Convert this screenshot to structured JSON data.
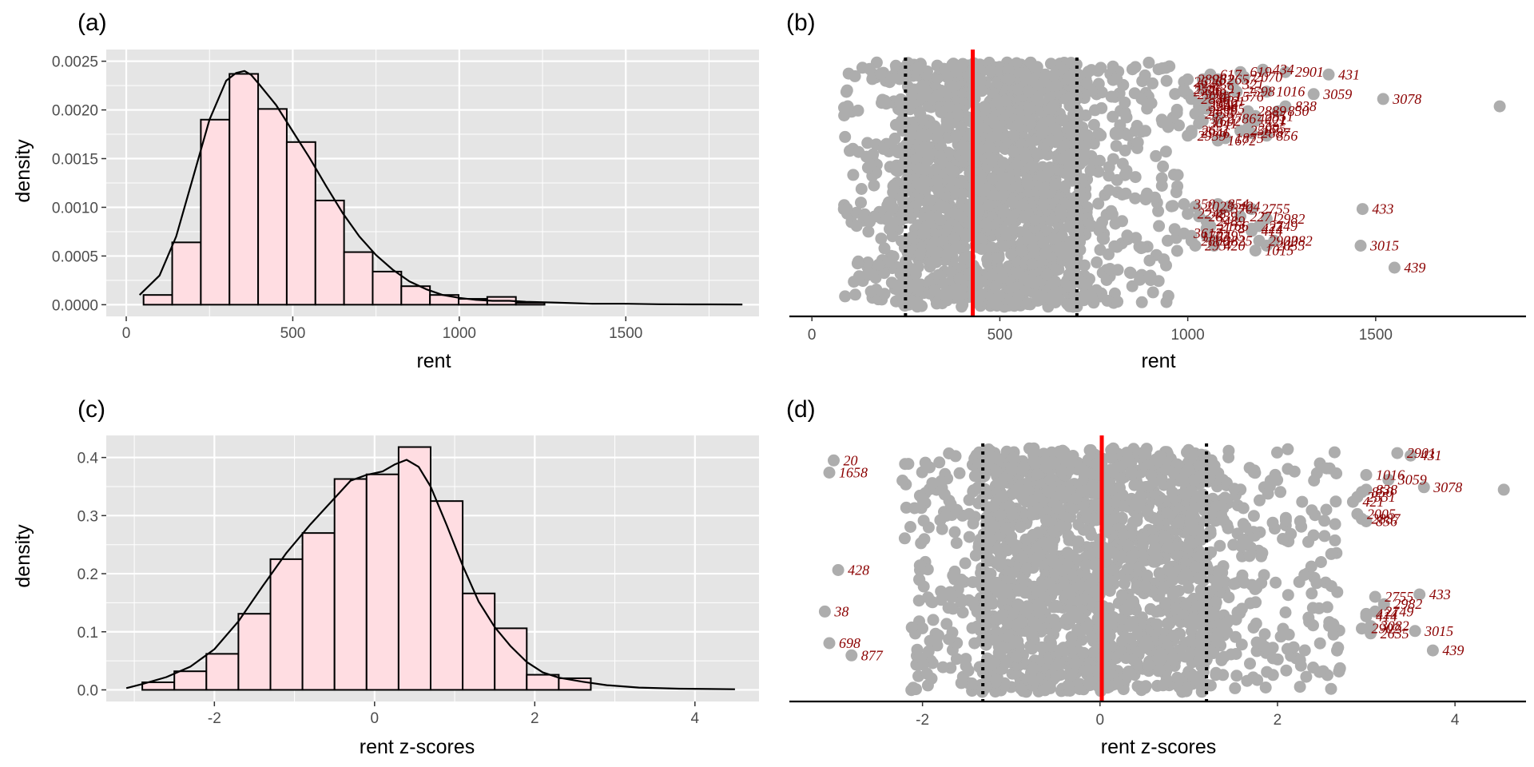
{
  "figure": {
    "colors": {
      "panel_bg": "#e5e5e5",
      "grid": "#ffffff",
      "bar_fill": "#ffdde2",
      "bar_stroke": "#000000",
      "density_line": "#000000",
      "point": "#adadad",
      "mean_line": "#ff0000",
      "sd_line": "#000000",
      "label": "#8b0000"
    }
  },
  "chart_data": [
    {
      "id": "a",
      "panel_label": "(a)",
      "type": "bar",
      "subtype": "histogram-with-density",
      "xlabel": "rent",
      "ylabel": "density",
      "xlim": [
        -60,
        1900
      ],
      "ylim": [
        -0.00012,
        0.00262
      ],
      "x_ticks": [
        0,
        500,
        1000,
        1500
      ],
      "x_tick_labels": [
        "0",
        "500",
        "1000",
        "1500"
      ],
      "y_ticks": [
        0,
        0.0005,
        0.001,
        0.0015,
        0.002,
        0.0025
      ],
      "y_tick_labels": [
        "0.0000",
        "0.0005",
        "0.0010",
        "0.0015",
        "0.0020",
        "0.0025"
      ],
      "bin_width": 86,
      "bin_centers": [
        95,
        181,
        267,
        353,
        439,
        525,
        611,
        697,
        783,
        869,
        955,
        1041,
        1127,
        1213
      ],
      "values": [
        0.0001,
        0.00064,
        0.0019,
        0.00237,
        0.00201,
        0.00167,
        0.00107,
        0.00054,
        0.00034,
        0.00019,
        0.0001,
        6e-05,
        8e-05,
        2e-05
      ],
      "density_curve": {
        "x": [
          40,
          100,
          150,
          200,
          250,
          300,
          330,
          355,
          375,
          400,
          450,
          500,
          550,
          600,
          650,
          700,
          750,
          800,
          850,
          900,
          950,
          1000,
          1050,
          1100,
          1150,
          1200,
          1300,
          1400,
          1500,
          1600,
          1700,
          1850
        ],
        "y": [
          0.0001,
          0.0003,
          0.0007,
          0.0013,
          0.0019,
          0.0023,
          0.00238,
          0.0024,
          0.00236,
          0.00226,
          0.00205,
          0.00178,
          0.00151,
          0.00122,
          0.00094,
          0.0007,
          0.00051,
          0.00036,
          0.00024,
          0.00016,
          0.0001,
          7e-05,
          5e-05,
          4e-05,
          4e-05,
          3e-05,
          2e-05,
          1e-05,
          1e-05,
          5e-06,
          3e-06,
          2e-06
        ]
      }
    },
    {
      "id": "b",
      "panel_label": "(b)",
      "type": "scatter",
      "subtype": "jitter-strip",
      "xlabel": "rent",
      "xlim": [
        -60,
        1900
      ],
      "x_ticks": [
        0,
        500,
        1000,
        1500
      ],
      "x_tick_labels": [
        "0",
        "500",
        "1000",
        "1500"
      ],
      "mean": 428,
      "sd_bounds": [
        249,
        705
      ],
      "dense_range": [
        249,
        705
      ],
      "outliers": [
        {
          "x": 1830,
          "y": 0.82
        },
        {
          "x": 1520,
          "y": 0.85,
          "label": "3078"
        },
        {
          "x": 1375,
          "y": 0.95,
          "label": "431"
        },
        {
          "x": 1335,
          "y": 0.87,
          "label": "3059"
        },
        {
          "x": 1465,
          "y": 0.4,
          "label": "433"
        },
        {
          "x": 1460,
          "y": 0.25,
          "label": "3015"
        },
        {
          "x": 1550,
          "y": 0.16,
          "label": "439"
        },
        {
          "x": 1260,
          "y": 0.96,
          "label": "2901"
        },
        {
          "x": 1200,
          "y": 0.97,
          "label": "434"
        },
        {
          "x": 1140,
          "y": 0.96,
          "label": "619"
        },
        {
          "x": 1150,
          "y": 0.94,
          "label": "2070"
        },
        {
          "x": 1060,
          "y": 0.95,
          "label": "617"
        },
        {
          "x": 1080,
          "y": 0.93,
          "label": "2657"
        },
        {
          "x": 1040,
          "y": 0.93,
          "label": "262"
        },
        {
          "x": 990,
          "y": 0.92,
          "label": "2626"
        },
        {
          "x": 1000,
          "y": 0.93,
          "label": "2898"
        },
        {
          "x": 1120,
          "y": 0.91,
          "label": "321"
        },
        {
          "x": 1040,
          "y": 0.89,
          "label": "639"
        },
        {
          "x": 990,
          "y": 0.89,
          "label": "2586"
        },
        {
          "x": 990,
          "y": 0.88,
          "label": "2776"
        },
        {
          "x": 1000,
          "y": 0.87,
          "label": "2998"
        },
        {
          "x": 1210,
          "y": 0.88,
          "label": "1016"
        },
        {
          "x": 1130,
          "y": 0.88,
          "label": "2598"
        },
        {
          "x": 1100,
          "y": 0.86,
          "label": "1576"
        },
        {
          "x": 1060,
          "y": 0.86,
          "label": "451"
        },
        {
          "x": 1010,
          "y": 0.85,
          "label": "2880"
        },
        {
          "x": 1050,
          "y": 0.84,
          "label": "1561"
        },
        {
          "x": 1030,
          "y": 0.83,
          "label": "3062"
        },
        {
          "x": 1030,
          "y": 0.82,
          "label": "3246"
        },
        {
          "x": 1050,
          "y": 0.81,
          "label": "2085"
        },
        {
          "x": 1260,
          "y": 0.82,
          "label": "838"
        },
        {
          "x": 1240,
          "y": 0.8,
          "label": "850"
        },
        {
          "x": 1160,
          "y": 0.8,
          "label": "2889"
        },
        {
          "x": 1030,
          "y": 0.8,
          "label": "2839"
        },
        {
          "x": 1020,
          "y": 0.79,
          "label": "2656"
        },
        {
          "x": 1180,
          "y": 0.78,
          "label": "2551"
        },
        {
          "x": 1160,
          "y": 0.77,
          "label": "4001"
        },
        {
          "x": 1180,
          "y": 0.76,
          "label": "421"
        },
        {
          "x": 1080,
          "y": 0.77,
          "label": "2786"
        },
        {
          "x": 1040,
          "y": 0.76,
          "label": "1602"
        },
        {
          "x": 1030,
          "y": 0.75,
          "label": "3041"
        },
        {
          "x": 1160,
          "y": 0.73,
          "label": "2005"
        },
        {
          "x": 1140,
          "y": 0.72,
          "label": "2587"
        },
        {
          "x": 1170,
          "y": 0.71,
          "label": "2887"
        },
        {
          "x": 1210,
          "y": 0.7,
          "label": "856"
        },
        {
          "x": 1010,
          "y": 0.72,
          "label": "2651"
        },
        {
          "x": 1010,
          "y": 0.71,
          "label": "2946"
        },
        {
          "x": 1000,
          "y": 0.7,
          "label": "2939"
        },
        {
          "x": 1100,
          "y": 0.69,
          "label": "1875"
        },
        {
          "x": 1080,
          "y": 0.68,
          "label": "1672"
        },
        {
          "x": 990,
          "y": 0.42,
          "label": "350"
        },
        {
          "x": 1020,
          "y": 0.41,
          "label": "2023"
        },
        {
          "x": 1080,
          "y": 0.42,
          "label": "854"
        },
        {
          "x": 1110,
          "y": 0.41,
          "label": "424"
        },
        {
          "x": 1090,
          "y": 0.4,
          "label": "370"
        },
        {
          "x": 1170,
          "y": 0.4,
          "label": "2755"
        },
        {
          "x": 1000,
          "y": 0.38,
          "label": "2248"
        },
        {
          "x": 1030,
          "y": 0.37,
          "label": "2839"
        },
        {
          "x": 1140,
          "y": 0.37,
          "label": "2271"
        },
        {
          "x": 1210,
          "y": 0.36,
          "label": "2982"
        },
        {
          "x": 1050,
          "y": 0.35,
          "label": "2489"
        },
        {
          "x": 1060,
          "y": 0.33,
          "label": "2166"
        },
        {
          "x": 1190,
          "y": 0.33,
          "label": "2749"
        },
        {
          "x": 1050,
          "y": 0.32,
          "label": "2178"
        },
        {
          "x": 1170,
          "y": 0.32,
          "label": "424"
        },
        {
          "x": 1170,
          "y": 0.31,
          "label": "414"
        },
        {
          "x": 990,
          "y": 0.3,
          "label": "3617"
        },
        {
          "x": 1010,
          "y": 0.29,
          "label": "1703"
        },
        {
          "x": 1050,
          "y": 0.29,
          "label": "2495"
        },
        {
          "x": 1010,
          "y": 0.27,
          "label": "2806"
        },
        {
          "x": 1070,
          "y": 0.27,
          "label": "2825"
        },
        {
          "x": 1190,
          "y": 0.27,
          "label": "2902"
        },
        {
          "x": 1230,
          "y": 0.27,
          "label": "3082"
        },
        {
          "x": 1020,
          "y": 0.25,
          "label": "2957"
        },
        {
          "x": 1070,
          "y": 0.25,
          "label": "420"
        },
        {
          "x": 1210,
          "y": 0.25,
          "label": "2635"
        },
        {
          "x": 1180,
          "y": 0.23,
          "label": "1015"
        }
      ]
    },
    {
      "id": "c",
      "panel_label": "(c)",
      "type": "bar",
      "subtype": "histogram-with-density",
      "xlabel": "rent z-scores",
      "ylabel": "density",
      "xlim": [
        -3.35,
        4.8
      ],
      "ylim": [
        -0.02,
        0.438
      ],
      "x_ticks": [
        -2,
        0,
        2,
        4
      ],
      "x_tick_labels": [
        "-2",
        "0",
        "2",
        "4"
      ],
      "y_ticks": [
        0,
        0.1,
        0.2,
        0.3,
        0.4
      ],
      "y_tick_labels": [
        "0.0",
        "0.1",
        "0.2",
        "0.3",
        "0.4"
      ],
      "bin_width": 0.4,
      "bin_centers": [
        -2.7,
        -2.3,
        -1.9,
        -1.5,
        -1.1,
        -0.7,
        -0.3,
        0.1,
        0.5,
        0.9,
        1.3,
        1.7,
        2.1,
        2.5
      ],
      "values": [
        0.013,
        0.032,
        0.062,
        0.131,
        0.225,
        0.27,
        0.363,
        0.371,
        0.418,
        0.325,
        0.166,
        0.106,
        0.026,
        0.02
      ],
      "density_curve": {
        "x": [
          -3.1,
          -2.9,
          -2.6,
          -2.3,
          -2.0,
          -1.7,
          -1.4,
          -1.1,
          -0.8,
          -0.5,
          -0.3,
          -0.1,
          0.1,
          0.25,
          0.4,
          0.55,
          0.7,
          0.9,
          1.1,
          1.3,
          1.5,
          1.7,
          1.9,
          2.1,
          2.3,
          2.6,
          2.9,
          3.3,
          3.8,
          4.5
        ],
        "y": [
          0.003,
          0.01,
          0.022,
          0.04,
          0.07,
          0.118,
          0.178,
          0.236,
          0.285,
          0.33,
          0.36,
          0.37,
          0.376,
          0.388,
          0.396,
          0.384,
          0.35,
          0.284,
          0.214,
          0.152,
          0.108,
          0.075,
          0.048,
          0.03,
          0.021,
          0.014,
          0.008,
          0.004,
          0.002,
          0.001
        ]
      }
    },
    {
      "id": "d",
      "panel_label": "(d)",
      "type": "scatter",
      "subtype": "jitter-strip",
      "xlabel": "rent z-scores",
      "xlim": [
        -3.5,
        4.8
      ],
      "x_ticks": [
        -2,
        0,
        2,
        4
      ],
      "x_tick_labels": [
        "-2",
        "0",
        "2",
        "4"
      ],
      "mean": 0.02,
      "sd_bounds": [
        -1.32,
        1.2
      ],
      "dense_range": [
        -1.32,
        1.2
      ],
      "outliers": [
        {
          "x": 4.55,
          "y": 0.83
        },
        {
          "x": 3.65,
          "y": 0.84,
          "label": "3078"
        },
        {
          "x": 3.5,
          "y": 0.97,
          "label": "431"
        },
        {
          "x": 3.35,
          "y": 0.98,
          "label": "2901"
        },
        {
          "x": 3.25,
          "y": 0.87,
          "label": "3059"
        },
        {
          "x": 3.0,
          "y": 0.89,
          "label": "1016"
        },
        {
          "x": 3.0,
          "y": 0.83,
          "label": "838"
        },
        {
          "x": 2.95,
          "y": 0.82,
          "label": "850"
        },
        {
          "x": 2.9,
          "y": 0.8,
          "label": "2551"
        },
        {
          "x": 2.85,
          "y": 0.78,
          "label": "421"
        },
        {
          "x": 2.9,
          "y": 0.73,
          "label": "2005"
        },
        {
          "x": 2.95,
          "y": 0.71,
          "label": "2887"
        },
        {
          "x": 3.0,
          "y": 0.7,
          "label": "856"
        },
        {
          "x": 3.6,
          "y": 0.4,
          "label": "433"
        },
        {
          "x": 3.1,
          "y": 0.39,
          "label": "2755"
        },
        {
          "x": 3.2,
          "y": 0.36,
          "label": "2982"
        },
        {
          "x": 3.55,
          "y": 0.25,
          "label": "3015"
        },
        {
          "x": 3.1,
          "y": 0.33,
          "label": "2749"
        },
        {
          "x": 3.0,
          "y": 0.32,
          "label": "424"
        },
        {
          "x": 3.0,
          "y": 0.31,
          "label": "414"
        },
        {
          "x": 3.75,
          "y": 0.17,
          "label": "439"
        },
        {
          "x": 3.05,
          "y": 0.27,
          "label": "3082"
        },
        {
          "x": 2.95,
          "y": 0.26,
          "label": "2902"
        },
        {
          "x": 3.05,
          "y": 0.24,
          "label": "2635"
        },
        {
          "x": -3.0,
          "y": 0.95,
          "label": "20"
        },
        {
          "x": -3.05,
          "y": 0.9,
          "label": "1658"
        },
        {
          "x": -2.95,
          "y": 0.5,
          "label": "428"
        },
        {
          "x": -3.1,
          "y": 0.33,
          "label": "38"
        },
        {
          "x": -3.05,
          "y": 0.2,
          "label": "698"
        },
        {
          "x": -2.8,
          "y": 0.15,
          "label": "877"
        }
      ]
    }
  ]
}
